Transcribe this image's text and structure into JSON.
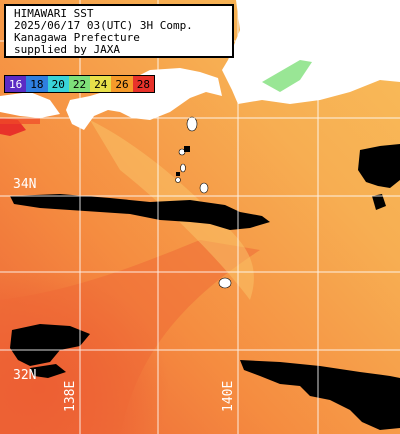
{
  "header": {
    "line1": "HIMAWARI SST",
    "line2": "2025/06/17 03(UTC) 3H Comp.",
    "line3": "Kanagawa Prefecture",
    "line4": "supplied by JAXA"
  },
  "legend": {
    "items": [
      {
        "label": "16",
        "color": "#5b2bc4",
        "text_color": "#ffffff"
      },
      {
        "label": "18",
        "color": "#2f7fe0",
        "text_color": "#000000"
      },
      {
        "label": "20",
        "color": "#39d3d8",
        "text_color": "#000000"
      },
      {
        "label": "22",
        "color": "#7fe07a",
        "text_color": "#000000"
      },
      {
        "label": "24",
        "color": "#e8e04a",
        "text_color": "#000000"
      },
      {
        "label": "26",
        "color": "#f59a2a",
        "text_color": "#000000"
      },
      {
        "label": "28",
        "color": "#e8322a",
        "text_color": "#000000"
      }
    ]
  },
  "grid_labels": {
    "lat_34": "34N",
    "lat_32": "32N",
    "lon_138": "138E",
    "lon_140": "140E"
  },
  "colors": {
    "land": "#ffffff",
    "cloud": "#000000",
    "warm_sea": "#f27a3a",
    "mid_sea": "#f6a04a",
    "cool_sea": "#f8c060",
    "grid": "#ffffff"
  }
}
